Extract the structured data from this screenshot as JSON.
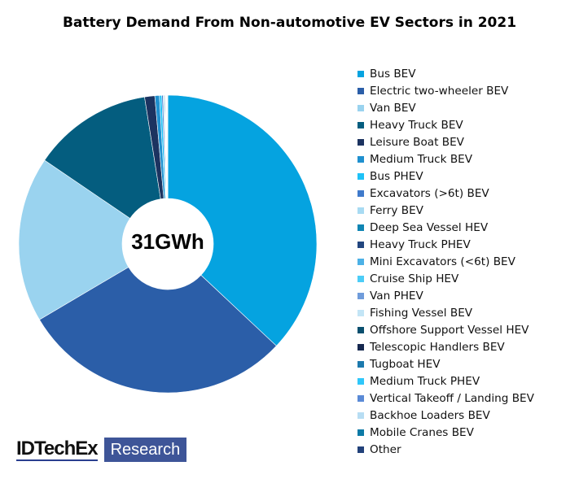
{
  "chart_data": {
    "type": "pie",
    "variant": "donut",
    "title": "Battery Demand From Non-automotive EV Sectors in 2021",
    "center_label": "31GWh",
    "unit": "share of total (%)",
    "legend_position": "right",
    "series": [
      {
        "name": "Bus BEV",
        "value": 37.0,
        "color": "#05a3e0"
      },
      {
        "name": "Electric two-wheeler BEV",
        "value": 29.5,
        "color": "#2b5ea8"
      },
      {
        "name": "Van BEV",
        "value": 18.0,
        "color": "#9ad3ef"
      },
      {
        "name": "Heavy Truck BEV",
        "value": 13.0,
        "color": "#045d7f"
      },
      {
        "name": "Leisure Boat BEV",
        "value": 1.1,
        "color": "#1c3360"
      },
      {
        "name": "Medium Truck BEV",
        "value": 0.5,
        "color": "#1f90cf"
      },
      {
        "name": "Bus PHEV",
        "value": 0.25,
        "color": "#1ec2f7"
      },
      {
        "name": "Excavators (>6t) BEV",
        "value": 0.15,
        "color": "#3f7acb"
      },
      {
        "name": "Ferry BEV",
        "value": 0.1,
        "color": "#a8dbf3"
      },
      {
        "name": "Deep Sea Vessel HEV",
        "value": 0.08,
        "color": "#0f85b3"
      },
      {
        "name": "Heavy Truck PHEV",
        "value": 0.06,
        "color": "#22467f"
      },
      {
        "name": "Mini Excavators (<6t) BEV",
        "value": 0.05,
        "color": "#4cb1e6"
      },
      {
        "name": "Cruise Ship HEV",
        "value": 0.04,
        "color": "#4ccdf7"
      },
      {
        "name": "Van PHEV",
        "value": 0.03,
        "color": "#6f9cdb"
      },
      {
        "name": "Fishing Vessel BEV",
        "value": 0.02,
        "color": "#c3e5f6"
      },
      {
        "name": "Offshore Support Vessel HEV",
        "value": 0.02,
        "color": "#0a4f6e"
      },
      {
        "name": "Telescopic Handlers BEV",
        "value": 0.02,
        "color": "#16284f"
      },
      {
        "name": "Tugboat HEV",
        "value": 0.015,
        "color": "#1c79ad"
      },
      {
        "name": "Medium Truck PHEV",
        "value": 0.015,
        "color": "#2fc7fa"
      },
      {
        "name": "Vertical Takeoff / Landing BEV",
        "value": 0.01,
        "color": "#5a8ad6"
      },
      {
        "name": "Backhoe Loaders BEV",
        "value": 0.01,
        "color": "#b7ddf3"
      },
      {
        "name": "Mobile Cranes BEV",
        "value": 0.01,
        "color": "#0d7aa6"
      },
      {
        "name": "Other",
        "value": 0.01,
        "color": "#22417a"
      }
    ]
  },
  "logo": {
    "text": "IDTechEx",
    "box": "Research"
  }
}
